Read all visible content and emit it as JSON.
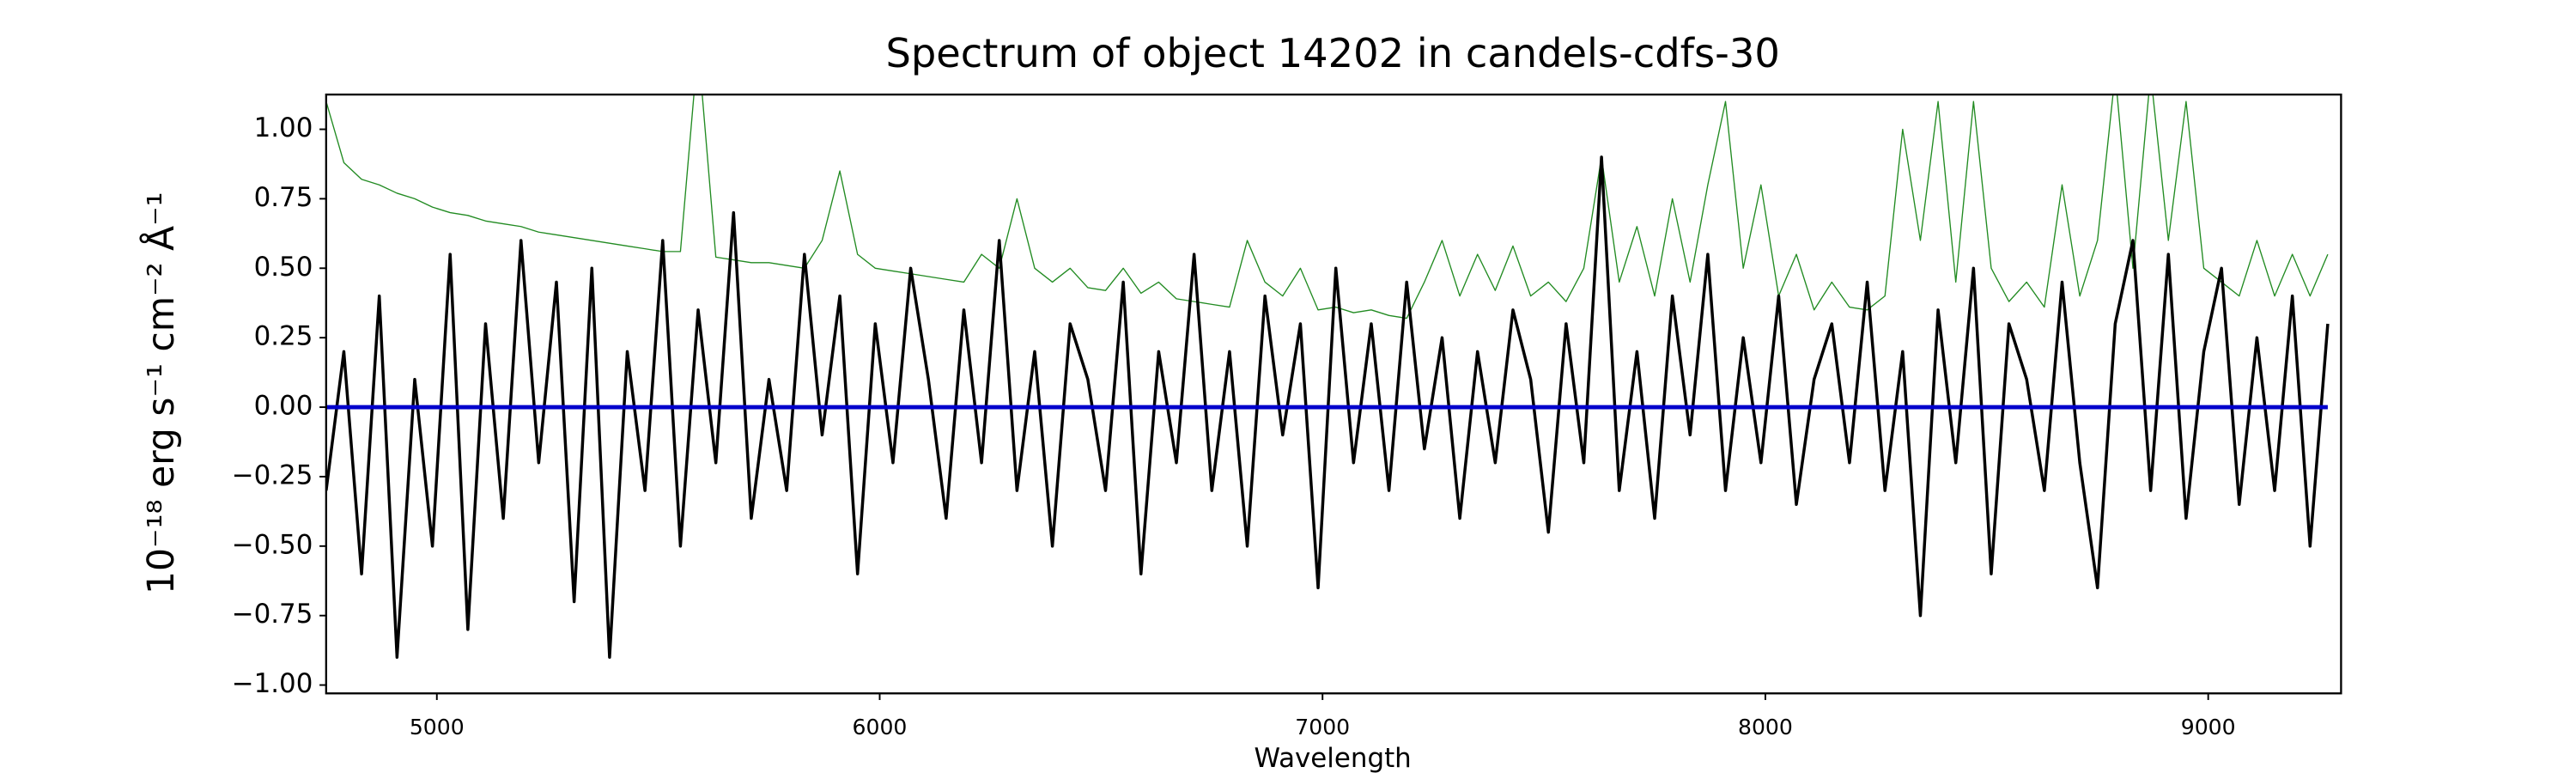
{
  "chart_data": {
    "type": "line",
    "title": "Spectrum of object 14202 in candels-cdfs-30",
    "xlabel": "Wavelength",
    "ylabel": "10⁻¹⁸ erg s⁻¹ cm⁻² Å⁻¹",
    "x": [
      4750,
      4790,
      4830,
      4870,
      4910,
      4950,
      4990,
      5030,
      5070,
      5110,
      5150,
      5190,
      5230,
      5270,
      5310,
      5350,
      5390,
      5430,
      5470,
      5510,
      5550,
      5590,
      5630,
      5670,
      5710,
      5750,
      5790,
      5830,
      5870,
      5910,
      5950,
      5990,
      6030,
      6070,
      6110,
      6150,
      6190,
      6230,
      6270,
      6310,
      6350,
      6390,
      6430,
      6470,
      6510,
      6550,
      6590,
      6630,
      6670,
      6710,
      6750,
      6790,
      6830,
      6870,
      6910,
      6950,
      6990,
      7030,
      7070,
      7110,
      7150,
      7190,
      7230,
      7270,
      7310,
      7350,
      7390,
      7430,
      7470,
      7510,
      7550,
      7590,
      7630,
      7670,
      7710,
      7750,
      7790,
      7830,
      7870,
      7910,
      7950,
      7990,
      8030,
      8070,
      8110,
      8150,
      8190,
      8230,
      8270,
      8310,
      8350,
      8390,
      8430,
      8470,
      8510,
      8550,
      8590,
      8630,
      8670,
      8710,
      8750,
      8790,
      8830,
      8870,
      8910,
      8950,
      8990,
      9030,
      9070,
      9110,
      9150,
      9190,
      9230,
      9270
    ],
    "series": [
      {
        "color": "#228b22",
        "values": [
          1.1,
          0.88,
          0.82,
          0.8,
          0.77,
          0.75,
          0.72,
          0.7,
          0.69,
          0.67,
          0.66,
          0.65,
          0.63,
          0.62,
          0.61,
          0.6,
          0.59,
          0.58,
          0.57,
          0.56,
          0.56,
          1.3,
          0.54,
          0.53,
          0.52,
          0.52,
          0.51,
          0.5,
          0.6,
          0.85,
          0.55,
          0.5,
          0.49,
          0.48,
          0.47,
          0.46,
          0.45,
          0.55,
          0.5,
          0.75,
          0.5,
          0.45,
          0.5,
          0.43,
          0.42,
          0.5,
          0.41,
          0.45,
          0.39,
          0.38,
          0.37,
          0.36,
          0.6,
          0.45,
          0.4,
          0.5,
          0.35,
          0.36,
          0.34,
          0.35,
          0.33,
          0.32,
          0.45,
          0.6,
          0.4,
          0.55,
          0.42,
          0.58,
          0.4,
          0.45,
          0.38,
          0.5,
          0.9,
          0.45,
          0.65,
          0.4,
          0.75,
          0.45,
          0.8,
          1.1,
          0.5,
          0.8,
          0.4,
          0.55,
          0.35,
          0.45,
          0.36,
          0.35,
          0.4,
          1.0,
          0.6,
          1.1,
          0.45,
          1.1,
          0.5,
          0.38,
          0.45,
          0.36,
          0.8,
          0.4,
          0.6,
          1.2,
          0.5,
          1.2,
          0.6,
          1.1,
          0.5,
          0.45,
          0.4,
          0.6,
          0.4,
          0.55,
          0.4,
          0.55
        ]
      },
      {
        "color": "#000000",
        "values": [
          -0.3,
          0.2,
          -0.6,
          0.4,
          -0.9,
          0.1,
          -0.5,
          0.55,
          -0.8,
          0.3,
          -0.4,
          0.6,
          -0.2,
          0.45,
          -0.7,
          0.5,
          -0.9,
          0.2,
          -0.3,
          0.6,
          -0.5,
          0.35,
          -0.2,
          0.7,
          -0.4,
          0.1,
          -0.3,
          0.55,
          -0.1,
          0.4,
          -0.6,
          0.3,
          -0.2,
          0.5,
          0.1,
          -0.4,
          0.35,
          -0.2,
          0.6,
          -0.3,
          0.2,
          -0.5,
          0.3,
          0.1,
          -0.3,
          0.45,
          -0.6,
          0.2,
          -0.2,
          0.55,
          -0.3,
          0.2,
          -0.5,
          0.4,
          -0.1,
          0.3,
          -0.65,
          0.5,
          -0.2,
          0.3,
          -0.3,
          0.45,
          -0.15,
          0.25,
          -0.4,
          0.2,
          -0.2,
          0.35,
          0.1,
          -0.45,
          0.3,
          -0.2,
          0.9,
          -0.3,
          0.2,
          -0.4,
          0.4,
          -0.1,
          0.55,
          -0.3,
          0.25,
          -0.2,
          0.4,
          -0.35,
          0.1,
          0.3,
          -0.2,
          0.45,
          -0.3,
          0.2,
          -0.75,
          0.35,
          -0.2,
          0.5,
          -0.6,
          0.3,
          0.1,
          -0.3,
          0.45,
          -0.2,
          -0.65,
          0.3,
          0.6,
          -0.3,
          0.55,
          -0.4,
          0.2,
          0.5,
          -0.35,
          0.25,
          -0.3,
          0.4,
          -0.5,
          0.3
        ]
      },
      {
        "color": "#0000cc",
        "values": [
          0,
          0,
          0,
          0,
          0,
          0,
          0,
          0,
          0,
          0,
          0,
          0,
          0,
          0,
          0,
          0,
          0,
          0,
          0,
          0,
          0,
          0,
          0,
          0,
          0,
          0,
          0,
          0,
          0,
          0,
          0,
          0,
          0,
          0,
          0,
          0,
          0,
          0,
          0,
          0,
          0,
          0,
          0,
          0,
          0,
          0,
          0,
          0,
          0,
          0,
          0,
          0,
          0,
          0,
          0,
          0,
          0,
          0,
          0,
          0,
          0,
          0,
          0,
          0,
          0,
          0,
          0,
          0,
          0,
          0,
          0,
          0,
          0,
          0,
          0,
          0,
          0,
          0,
          0,
          0,
          0,
          0,
          0,
          0,
          0,
          0,
          0,
          0,
          0,
          0,
          0,
          0,
          0,
          0,
          0,
          0,
          0,
          0,
          0,
          0,
          0,
          0,
          0,
          0,
          0,
          0,
          0,
          0,
          0,
          0,
          0,
          0,
          0,
          0
        ]
      }
    ],
    "xlim": [
      4750,
      9300
    ],
    "ylim": [
      -1.03,
      1.125
    ],
    "xticks": [
      5000,
      6000,
      7000,
      8000,
      9000
    ],
    "yticks": [
      {
        "value": -1,
        "label": "−1.00"
      },
      {
        "value": -0.75,
        "label": "−0.75"
      },
      {
        "value": -0.5,
        "label": "−0.50"
      },
      {
        "value": -0.25,
        "label": "−0.25"
      },
      {
        "value": 0,
        "label": "0.00"
      },
      {
        "value": 0.25,
        "label": "0.25"
      },
      {
        "value": 0.5,
        "label": "0.50"
      },
      {
        "value": 0.75,
        "label": "0.75"
      },
      {
        "value": 1,
        "label": "1.00"
      }
    ]
  }
}
